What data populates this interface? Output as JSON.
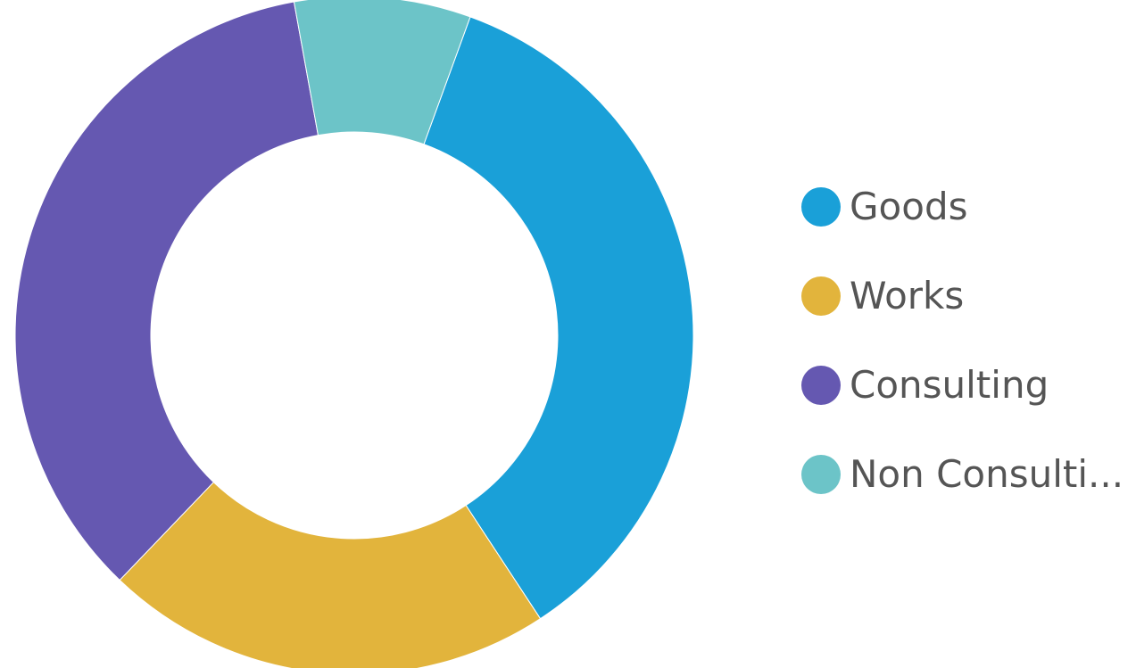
{
  "chart_data": {
    "type": "pie",
    "donut": true,
    "title": "",
    "categories": [
      "Goods",
      "Works",
      "Consulting",
      "Non Consulti..."
    ],
    "values": [
      35.2,
      21.4,
      35.0,
      8.4
    ],
    "colors": [
      "#1aa0d8",
      "#e2b43c",
      "#6558b1",
      "#6cc4c8"
    ],
    "start_angle_deg": 20,
    "legend_position": "right",
    "grid": false
  },
  "legend": {
    "items": [
      {
        "label": "Goods",
        "color": "#1aa0d8"
      },
      {
        "label": "Works",
        "color": "#e2b43c"
      },
      {
        "label": "Consulting",
        "color": "#6558b1"
      },
      {
        "label": "Non Consulti...",
        "color": "#6cc4c8"
      }
    ]
  }
}
